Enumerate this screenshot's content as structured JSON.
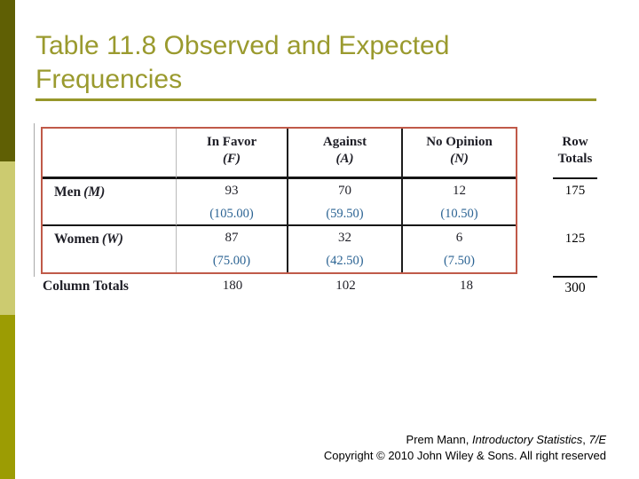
{
  "colors": {
    "bar_dark": "#5f5f04",
    "bar_light": "#cccb70",
    "bar_medium": "#9c9c03",
    "title": "#9a9a2e",
    "rule": "#97972a",
    "red_border": "#c05a49",
    "blue": "#2b6393",
    "ink": "#1e1e26"
  },
  "slide": {
    "title_line1": "Table 11.8 Observed and Expected",
    "title_line2": "Frequencies"
  },
  "table": {
    "headers": [
      {
        "label": "In Favor",
        "symbol": "(F)"
      },
      {
        "label": "Against",
        "symbol": "(A)"
      },
      {
        "label": "No Opinion",
        "symbol": "(N)"
      }
    ],
    "row_totals_header_line1": "Row",
    "row_totals_header_line2": "Totals",
    "rows": [
      {
        "label": "Men",
        "symbol": "(M)",
        "obs": [
          "93",
          "70",
          "12"
        ],
        "exp": [
          "(105.00)",
          "(59.50)",
          "(10.50)"
        ],
        "row_total": "175"
      },
      {
        "label": "Women",
        "symbol": "(W)",
        "obs": [
          "87",
          "32",
          "6"
        ],
        "exp": [
          "(75.00)",
          "(42.50)",
          "(7.50)"
        ],
        "row_total": "125"
      }
    ],
    "column_totals_label": "Column Totals",
    "column_totals": [
      "180",
      "102",
      "18"
    ],
    "grand_total": "300"
  },
  "footer": {
    "author_prefix": "Prem Mann, ",
    "book_title": "Introductory Statistics",
    "separator": ", ",
    "edition": "7/E",
    "copyright": "Copyright © 2010 John Wiley & Sons. All right reserved"
  }
}
